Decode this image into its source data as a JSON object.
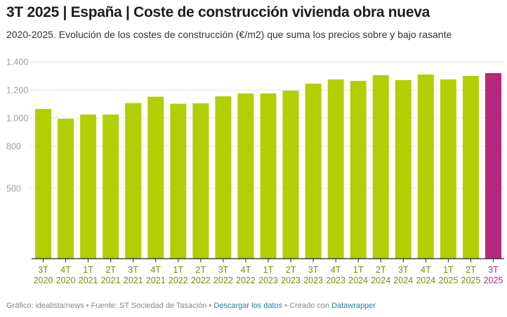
{
  "header": {
    "title": "3T 2025 | España | Coste de construcción vivienda obra nueva",
    "subtitle": "2020-2025. Evolución de los costes de construcción (€/m2) que suma los precios sobre y bajo rasante"
  },
  "chart_data": {
    "type": "bar",
    "title": "3T 2025 | España | Coste de construcción vivienda obra nueva",
    "subtitle": "2020-2025. Evolución de los costes de construcción (€/m2) que suma los precios sobre y bajo rasante",
    "xlabel": "",
    "ylabel": "€/m2",
    "ylim": [
      0,
      1400
    ],
    "grid": true,
    "yticks": [
      500,
      800,
      1000,
      1200,
      1400
    ],
    "ytick_labels": [
      "500",
      "800",
      "1.000",
      "1.200",
      "1.400"
    ],
    "categories": [
      {
        "q": "3T",
        "y": "2020"
      },
      {
        "q": "4T",
        "y": "2020"
      },
      {
        "q": "1T",
        "y": "2021"
      },
      {
        "q": "2T",
        "y": "2021"
      },
      {
        "q": "3T",
        "y": "2021"
      },
      {
        "q": "4T",
        "y": "2021"
      },
      {
        "q": "1T",
        "y": "2022"
      },
      {
        "q": "2T",
        "y": "2022"
      },
      {
        "q": "3T",
        "y": "2022"
      },
      {
        "q": "4T",
        "y": "2022"
      },
      {
        "q": "1T",
        "y": "2023"
      },
      {
        "q": "2T",
        "y": "2023"
      },
      {
        "q": "3T",
        "y": "2023"
      },
      {
        "q": "4T",
        "y": "2023"
      },
      {
        "q": "1T",
        "y": "2024"
      },
      {
        "q": "2T",
        "y": "2024"
      },
      {
        "q": "3T",
        "y": "2024"
      },
      {
        "q": "4T",
        "y": "2024"
      },
      {
        "q": "1T",
        "y": "2025"
      },
      {
        "q": "2T",
        "y": "2025"
      },
      {
        "q": "3T",
        "y": "2025"
      }
    ],
    "values": [
      1065,
      995,
      1025,
      1025,
      1107,
      1152,
      1102,
      1105,
      1155,
      1175,
      1175,
      1195,
      1245,
      1275,
      1265,
      1305,
      1270,
      1310,
      1275,
      1300,
      1320
    ],
    "highlight_index": 20,
    "colors": {
      "bar": "#b1cf02",
      "highlight": "#b5287f",
      "label": "#7b8a0a",
      "label_highlight": "#b5287f",
      "grid": "#e6e6e6",
      "axis": "#222222"
    }
  },
  "footer": {
    "graphic": "Gráfico: idealista/news",
    "sep1": " • ",
    "source": "Fuente: ST Sociedad de Tasación",
    "sep2": " • ",
    "download_link": "Descargar los datos",
    "sep3": " • ",
    "created": "Creado con ",
    "tool_link": "Datawrapper"
  }
}
